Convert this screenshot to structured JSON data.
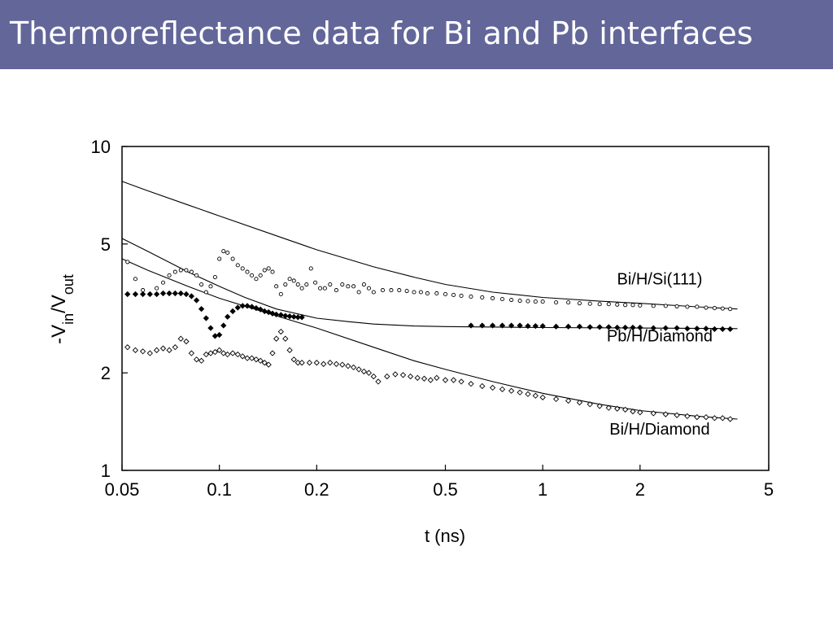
{
  "slide": {
    "title": "Thermoreflectance data for Bi and Pb interfaces",
    "header_color": "#636699"
  },
  "chart_data": {
    "type": "scatter",
    "x_scale": "log",
    "y_scale": "log",
    "xlabel": "t (ns)",
    "ylabel": "-Vin/Vout",
    "ylabel_parts": {
      "main": "-V",
      "sub1": "in",
      "slash": "/V",
      "sub2": "out"
    },
    "xlim": [
      0.05,
      5
    ],
    "ylim": [
      1,
      10
    ],
    "x_ticks": [
      0.05,
      0.1,
      0.2,
      0.5,
      1,
      2,
      5
    ],
    "x_tick_labels": [
      "0.05",
      "0.1",
      "0.2",
      "0.5",
      "1",
      "2",
      "5"
    ],
    "y_ticks": [
      1,
      2,
      5,
      10
    ],
    "y_tick_labels": [
      "1",
      "2",
      "5",
      "10"
    ],
    "grid": false,
    "series": [
      {
        "name": "Bi/H/Si(111)",
        "marker": "open-circle",
        "points": [
          [
            0.052,
            4.4
          ],
          [
            0.055,
            3.9
          ],
          [
            0.058,
            3.6
          ],
          [
            0.061,
            3.5
          ],
          [
            0.064,
            3.65
          ],
          [
            0.067,
            3.8
          ],
          [
            0.07,
            4.0
          ],
          [
            0.073,
            4.1
          ],
          [
            0.076,
            4.15
          ],
          [
            0.079,
            4.15
          ],
          [
            0.082,
            4.1
          ],
          [
            0.085,
            4.0
          ],
          [
            0.088,
            3.75
          ],
          [
            0.091,
            3.55
          ],
          [
            0.094,
            3.7
          ],
          [
            0.097,
            3.95
          ],
          [
            0.1,
            4.5
          ],
          [
            0.103,
            4.75
          ],
          [
            0.106,
            4.7
          ],
          [
            0.11,
            4.5
          ],
          [
            0.114,
            4.3
          ],
          [
            0.118,
            4.2
          ],
          [
            0.122,
            4.1
          ],
          [
            0.126,
            4.0
          ],
          [
            0.13,
            3.9
          ],
          [
            0.134,
            4.0
          ],
          [
            0.138,
            4.15
          ],
          [
            0.142,
            4.2
          ],
          [
            0.146,
            4.1
          ],
          [
            0.15,
            3.7
          ],
          [
            0.155,
            3.5
          ],
          [
            0.16,
            3.75
          ],
          [
            0.165,
            3.9
          ],
          [
            0.17,
            3.85
          ],
          [
            0.175,
            3.75
          ],
          [
            0.18,
            3.65
          ],
          [
            0.186,
            3.75
          ],
          [
            0.192,
            4.2
          ],
          [
            0.198,
            3.8
          ],
          [
            0.205,
            3.65
          ],
          [
            0.212,
            3.65
          ],
          [
            0.22,
            3.75
          ],
          [
            0.23,
            3.6
          ],
          [
            0.24,
            3.75
          ],
          [
            0.25,
            3.7
          ],
          [
            0.26,
            3.7
          ],
          [
            0.27,
            3.55
          ],
          [
            0.28,
            3.75
          ],
          [
            0.29,
            3.65
          ],
          [
            0.3,
            3.55
          ],
          [
            0.32,
            3.6
          ],
          [
            0.34,
            3.6
          ],
          [
            0.36,
            3.6
          ],
          [
            0.38,
            3.58
          ],
          [
            0.4,
            3.55
          ],
          [
            0.42,
            3.55
          ],
          [
            0.44,
            3.52
          ],
          [
            0.47,
            3.52
          ],
          [
            0.5,
            3.5
          ],
          [
            0.53,
            3.48
          ],
          [
            0.56,
            3.46
          ],
          [
            0.6,
            3.44
          ],
          [
            0.65,
            3.42
          ],
          [
            0.7,
            3.4
          ],
          [
            0.75,
            3.38
          ],
          [
            0.8,
            3.36
          ],
          [
            0.85,
            3.34
          ],
          [
            0.9,
            3.33
          ],
          [
            0.95,
            3.32
          ],
          [
            1.0,
            3.32
          ],
          [
            1.1,
            3.3
          ],
          [
            1.2,
            3.3
          ],
          [
            1.3,
            3.28
          ],
          [
            1.4,
            3.27
          ],
          [
            1.5,
            3.26
          ],
          [
            1.6,
            3.26
          ],
          [
            1.7,
            3.25
          ],
          [
            1.8,
            3.24
          ],
          [
            1.9,
            3.24
          ],
          [
            2.0,
            3.23
          ],
          [
            2.2,
            3.22
          ],
          [
            2.4,
            3.22
          ],
          [
            2.6,
            3.21
          ],
          [
            2.8,
            3.2
          ],
          [
            3.0,
            3.2
          ],
          [
            3.2,
            3.18
          ],
          [
            3.4,
            3.17
          ],
          [
            3.6,
            3.16
          ],
          [
            3.8,
            3.15
          ]
        ]
      },
      {
        "name": "Pb/H/Diamond",
        "marker": "filled-diamond",
        "points": [
          [
            0.052,
            3.5
          ],
          [
            0.055,
            3.5
          ],
          [
            0.058,
            3.5
          ],
          [
            0.061,
            3.5
          ],
          [
            0.064,
            3.5
          ],
          [
            0.067,
            3.52
          ],
          [
            0.07,
            3.52
          ],
          [
            0.073,
            3.52
          ],
          [
            0.076,
            3.52
          ],
          [
            0.079,
            3.5
          ],
          [
            0.082,
            3.45
          ],
          [
            0.085,
            3.35
          ],
          [
            0.088,
            3.15
          ],
          [
            0.091,
            2.95
          ],
          [
            0.094,
            2.75
          ],
          [
            0.097,
            2.6
          ],
          [
            0.1,
            2.62
          ],
          [
            0.103,
            2.8
          ],
          [
            0.106,
            2.98
          ],
          [
            0.11,
            3.1
          ],
          [
            0.114,
            3.18
          ],
          [
            0.118,
            3.22
          ],
          [
            0.122,
            3.22
          ],
          [
            0.126,
            3.2
          ],
          [
            0.13,
            3.17
          ],
          [
            0.134,
            3.14
          ],
          [
            0.138,
            3.1
          ],
          [
            0.142,
            3.08
          ],
          [
            0.146,
            3.05
          ],
          [
            0.15,
            3.03
          ],
          [
            0.155,
            3.02
          ],
          [
            0.16,
            3.0
          ],
          [
            0.165,
            2.99
          ],
          [
            0.17,
            2.98
          ],
          [
            0.175,
            2.97
          ],
          [
            0.18,
            2.97
          ],
          [
            0.6,
            2.8
          ],
          [
            0.65,
            2.8
          ],
          [
            0.7,
            2.8
          ],
          [
            0.75,
            2.8
          ],
          [
            0.8,
            2.8
          ],
          [
            0.85,
            2.8
          ],
          [
            0.9,
            2.79
          ],
          [
            0.95,
            2.79
          ],
          [
            1.0,
            2.79
          ],
          [
            1.1,
            2.78
          ],
          [
            1.2,
            2.78
          ],
          [
            1.3,
            2.78
          ],
          [
            1.4,
            2.77
          ],
          [
            1.5,
            2.77
          ],
          [
            1.6,
            2.77
          ],
          [
            1.7,
            2.76
          ],
          [
            1.8,
            2.76
          ],
          [
            1.9,
            2.76
          ],
          [
            2.0,
            2.76
          ],
          [
            2.2,
            2.75
          ],
          [
            2.4,
            2.75
          ],
          [
            2.6,
            2.75
          ],
          [
            2.8,
            2.74
          ],
          [
            3.0,
            2.74
          ],
          [
            3.2,
            2.74
          ],
          [
            3.4,
            2.73
          ],
          [
            3.6,
            2.73
          ],
          [
            3.8,
            2.73
          ]
        ]
      },
      {
        "name": "Bi/H/Diamond",
        "marker": "open-diamond",
        "points": [
          [
            0.052,
            2.4
          ],
          [
            0.055,
            2.35
          ],
          [
            0.058,
            2.33
          ],
          [
            0.061,
            2.3
          ],
          [
            0.064,
            2.35
          ],
          [
            0.067,
            2.38
          ],
          [
            0.07,
            2.35
          ],
          [
            0.073,
            2.4
          ],
          [
            0.076,
            2.55
          ],
          [
            0.079,
            2.5
          ],
          [
            0.082,
            2.3
          ],
          [
            0.085,
            2.2
          ],
          [
            0.088,
            2.18
          ],
          [
            0.091,
            2.28
          ],
          [
            0.094,
            2.3
          ],
          [
            0.097,
            2.32
          ],
          [
            0.1,
            2.35
          ],
          [
            0.103,
            2.3
          ],
          [
            0.106,
            2.28
          ],
          [
            0.11,
            2.3
          ],
          [
            0.114,
            2.28
          ],
          [
            0.118,
            2.25
          ],
          [
            0.122,
            2.22
          ],
          [
            0.126,
            2.22
          ],
          [
            0.13,
            2.2
          ],
          [
            0.134,
            2.18
          ],
          [
            0.138,
            2.15
          ],
          [
            0.142,
            2.12
          ],
          [
            0.146,
            2.3
          ],
          [
            0.15,
            2.55
          ],
          [
            0.155,
            2.68
          ],
          [
            0.16,
            2.55
          ],
          [
            0.165,
            2.35
          ],
          [
            0.17,
            2.2
          ],
          [
            0.175,
            2.15
          ],
          [
            0.18,
            2.15
          ],
          [
            0.19,
            2.15
          ],
          [
            0.2,
            2.15
          ],
          [
            0.21,
            2.13
          ],
          [
            0.22,
            2.15
          ],
          [
            0.23,
            2.13
          ],
          [
            0.24,
            2.12
          ],
          [
            0.25,
            2.1
          ],
          [
            0.26,
            2.08
          ],
          [
            0.27,
            2.05
          ],
          [
            0.28,
            2.02
          ],
          [
            0.29,
            2.0
          ],
          [
            0.3,
            1.95
          ],
          [
            0.31,
            1.88
          ],
          [
            0.33,
            1.95
          ],
          [
            0.35,
            1.98
          ],
          [
            0.37,
            1.97
          ],
          [
            0.39,
            1.95
          ],
          [
            0.41,
            1.93
          ],
          [
            0.43,
            1.92
          ],
          [
            0.45,
            1.9
          ],
          [
            0.47,
            1.93
          ],
          [
            0.5,
            1.9
          ],
          [
            0.53,
            1.9
          ],
          [
            0.56,
            1.88
          ],
          [
            0.6,
            1.85
          ],
          [
            0.65,
            1.82
          ],
          [
            0.7,
            1.8
          ],
          [
            0.75,
            1.78
          ],
          [
            0.8,
            1.76
          ],
          [
            0.85,
            1.74
          ],
          [
            0.9,
            1.72
          ],
          [
            0.95,
            1.7
          ],
          [
            1.0,
            1.68
          ],
          [
            1.1,
            1.66
          ],
          [
            1.2,
            1.64
          ],
          [
            1.3,
            1.62
          ],
          [
            1.4,
            1.6
          ],
          [
            1.5,
            1.58
          ],
          [
            1.6,
            1.56
          ],
          [
            1.7,
            1.55
          ],
          [
            1.8,
            1.54
          ],
          [
            1.9,
            1.52
          ],
          [
            2.0,
            1.51
          ],
          [
            2.2,
            1.5
          ],
          [
            2.4,
            1.49
          ],
          [
            2.6,
            1.48
          ],
          [
            2.8,
            1.47
          ],
          [
            3.0,
            1.46
          ],
          [
            3.2,
            1.46
          ],
          [
            3.4,
            1.45
          ],
          [
            3.6,
            1.45
          ],
          [
            3.8,
            1.44
          ]
        ]
      }
    ],
    "fits": [
      {
        "series": "Bi/H/Si(111)",
        "points": [
          [
            0.05,
            7.8
          ],
          [
            0.06,
            7.3
          ],
          [
            0.08,
            6.6
          ],
          [
            0.1,
            6.1
          ],
          [
            0.15,
            5.3
          ],
          [
            0.2,
            4.8
          ],
          [
            0.3,
            4.25
          ],
          [
            0.4,
            3.95
          ],
          [
            0.5,
            3.75
          ],
          [
            0.7,
            3.55
          ],
          [
            1,
            3.42
          ],
          [
            1.5,
            3.33
          ],
          [
            2,
            3.28
          ],
          [
            3,
            3.2
          ],
          [
            4,
            3.15
          ]
        ]
      },
      {
        "series": "Pb/H/Diamond",
        "points": [
          [
            0.05,
            5.2
          ],
          [
            0.06,
            4.75
          ],
          [
            0.08,
            4.1
          ],
          [
            0.1,
            3.7
          ],
          [
            0.12,
            3.42
          ],
          [
            0.15,
            3.15
          ],
          [
            0.2,
            2.95
          ],
          [
            0.25,
            2.88
          ],
          [
            0.3,
            2.83
          ],
          [
            0.4,
            2.79
          ],
          [
            0.5,
            2.78
          ],
          [
            1,
            2.76
          ],
          [
            2,
            2.75
          ],
          [
            4,
            2.74
          ]
        ]
      },
      {
        "series": "Bi/H/Diamond",
        "points": [
          [
            0.05,
            4.5
          ],
          [
            0.06,
            4.15
          ],
          [
            0.08,
            3.7
          ],
          [
            0.1,
            3.4
          ],
          [
            0.15,
            3.0
          ],
          [
            0.2,
            2.75
          ],
          [
            0.3,
            2.4
          ],
          [
            0.4,
            2.18
          ],
          [
            0.5,
            2.05
          ],
          [
            0.7,
            1.88
          ],
          [
            1,
            1.73
          ],
          [
            1.5,
            1.6
          ],
          [
            2,
            1.53
          ],
          [
            3,
            1.47
          ],
          [
            4,
            1.44
          ]
        ]
      }
    ],
    "annotations": [
      {
        "text": "Bi/H/Si(111)",
        "x": 2.3,
        "y": 3.75
      },
      {
        "text": "Pb/H/Diamond",
        "x": 2.3,
        "y": 2.5
      },
      {
        "text": "Bi/H/Diamond",
        "x": 2.3,
        "y": 1.29
      }
    ]
  }
}
